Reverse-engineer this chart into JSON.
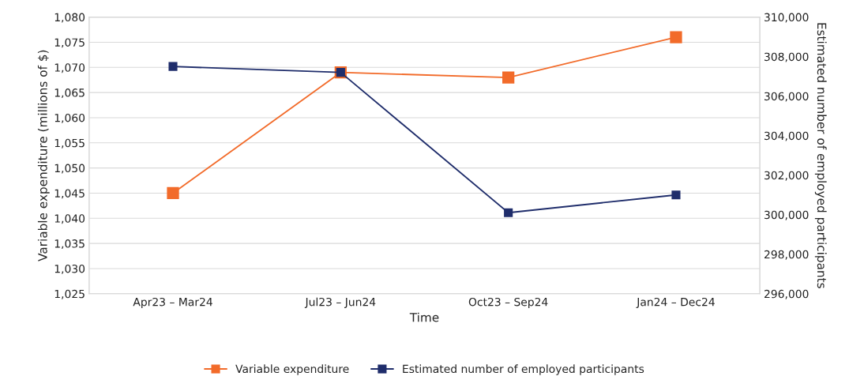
{
  "chart_data": {
    "type": "line",
    "xlabel": "Time",
    "ylabel": "Variable expenditure (millions of $)",
    "y2label": "Estimated number of employed participants",
    "categories": [
      "Apr23 – Mar24",
      "Jul23 – Jun24",
      "Oct23 – Sep24",
      "Jan24 – Dec24"
    ],
    "series": [
      {
        "name": "Variable expenditure",
        "color": "#f26b2a",
        "values": [
          1045,
          1069,
          1068,
          1076
        ]
      },
      {
        "name": "Estimated number of employed participants",
        "color": "#1f2d6b",
        "values": [
          307500,
          307200,
          300100,
          301000
        ],
        "axis": "y2"
      }
    ],
    "ylim": [
      1025,
      1080
    ],
    "yticks": [
      {
        "value": 1025,
        "label": "1,025"
      },
      {
        "value": 1030,
        "label": "1,030"
      },
      {
        "value": 1035,
        "label": "1,035"
      },
      {
        "value": 1040,
        "label": "1,040"
      },
      {
        "value": 1045,
        "label": "1,045"
      },
      {
        "value": 1050,
        "label": "1,050"
      },
      {
        "value": 1055,
        "label": "1,055"
      },
      {
        "value": 1060,
        "label": "1,060"
      },
      {
        "value": 1065,
        "label": "1,065"
      },
      {
        "value": 1070,
        "label": "1,070"
      },
      {
        "value": 1075,
        "label": "1,075"
      },
      {
        "value": 1080,
        "label": "1,080"
      }
    ],
    "y2lim": [
      296000,
      310000
    ],
    "y2ticks": [
      {
        "value": 296000,
        "label": "296,000"
      },
      {
        "value": 298000,
        "label": "298,000"
      },
      {
        "value": 300000,
        "label": "300,000"
      },
      {
        "value": 302000,
        "label": "302,000"
      },
      {
        "value": 304000,
        "label": "304,000"
      },
      {
        "value": 306000,
        "label": "306,000"
      },
      {
        "value": 308000,
        "label": "308,000"
      },
      {
        "value": 310000,
        "label": "310,000"
      }
    ],
    "grid": "y",
    "legend": "bottom",
    "marker": "square",
    "line_style": "solid"
  }
}
